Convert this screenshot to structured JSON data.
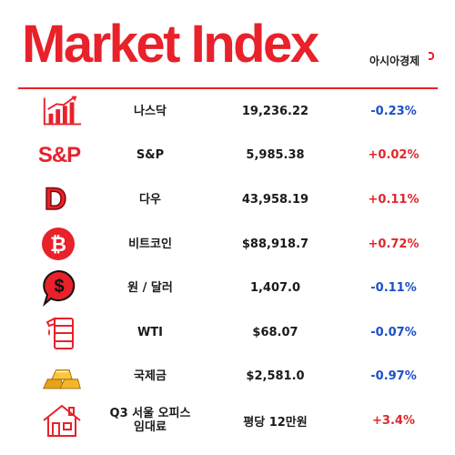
{
  "header": {
    "title": "Market Index",
    "brand": "아시아경제"
  },
  "colors": {
    "accent": "#e8212a",
    "up": "#e0262b",
    "down": "#1b4fc8"
  },
  "rows": [
    {
      "icon": "bar-chart-icon",
      "name": "나스닥",
      "value": "19,236.22",
      "change": "-0.23%",
      "direction": "down"
    },
    {
      "icon": "sp-logo-icon",
      "icon_text": "S&P",
      "name": "S&P",
      "value": "5,985.38",
      "change": "+0.02%",
      "direction": "up"
    },
    {
      "icon": "dow-d-icon",
      "icon_text": "D",
      "name": "다우",
      "value": "43,958.19",
      "change": "+0.11%",
      "direction": "up"
    },
    {
      "icon": "bitcoin-icon",
      "name": "비트코인",
      "value": "$88,918.7",
      "change": "+0.72%",
      "direction": "up"
    },
    {
      "icon": "dollar-bubble-icon",
      "icon_text": "$",
      "name": "원 / 달러",
      "value": "1,407.0",
      "change": "-0.11%",
      "direction": "down"
    },
    {
      "icon": "oil-barrel-icon",
      "name": "WTI",
      "value": "$68.07",
      "change": "-0.07%",
      "direction": "down"
    },
    {
      "icon": "gold-bars-icon",
      "name": "국제금",
      "value": "$2,581.0",
      "change": "-0.97%",
      "direction": "down"
    },
    {
      "icon": "house-icon",
      "name": "Q3 서울 오피스\n임대료",
      "value": "평당 12만원",
      "change": "+3.4%",
      "direction": "up"
    }
  ]
}
